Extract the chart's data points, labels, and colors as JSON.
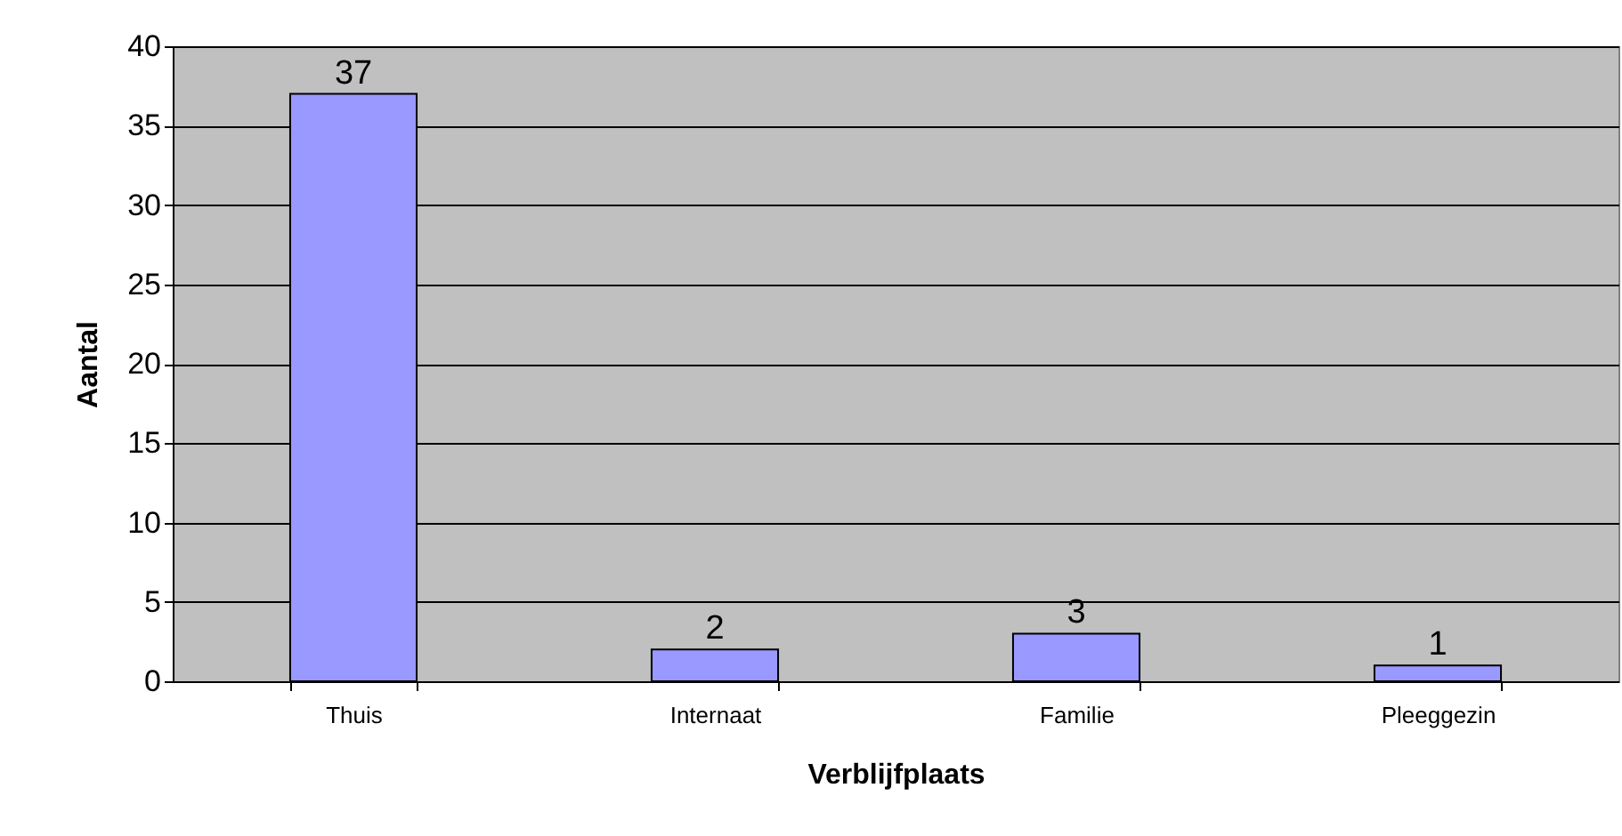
{
  "chart_data": {
    "type": "bar",
    "xlabel": "Verblijfplaats",
    "ylabel": "Aantal",
    "categories": [
      "Thuis",
      "Internaat",
      "Familie",
      "Pleeggezin"
    ],
    "values": [
      37,
      2,
      3,
      1
    ],
    "color": "#9999ff",
    "ylim": [
      0,
      40
    ],
    "yticks": [
      0,
      5,
      10,
      15,
      20,
      25,
      30,
      35,
      40
    ],
    "grid": true,
    "data_labels": true
  }
}
